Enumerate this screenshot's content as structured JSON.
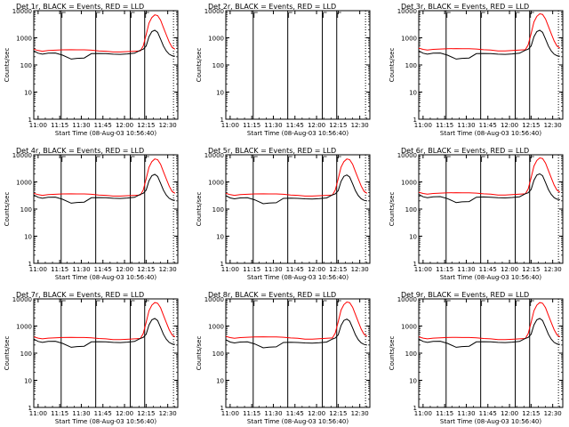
{
  "figure": {
    "rows": 3,
    "cols": 3
  },
  "common": {
    "ylabel": "Counts/sec",
    "xlabel": "Start Time (08-Aug-03 10:56:40)",
    "title_suffix": "BLACK = Events, RED = LLD",
    "x_ticks": [
      "11:00",
      "11:15",
      "11:30",
      "11:45",
      "12:00",
      "12:15",
      "12:30"
    ],
    "y_ticks": [
      "1",
      "10",
      "100",
      "1000",
      "10000"
    ],
    "colors": {
      "events": "#000000",
      "lld": "#ff0000",
      "axis": "#000000"
    }
  },
  "chart_data": [
    {
      "type": "line",
      "title": "Det 1r",
      "has_data": true,
      "events_scale": 1.0,
      "lld_scale": 1.0
    },
    {
      "type": "line",
      "title": "Det 2r",
      "has_data": false
    },
    {
      "type": "line",
      "title": "Det 3r",
      "has_data": true,
      "events_scale": 1.0,
      "lld_scale": 1.1
    },
    {
      "type": "line",
      "title": "Det 4r",
      "has_data": true,
      "events_scale": 1.0,
      "lld_scale": 1.0
    },
    {
      "type": "line",
      "title": "Det 5r",
      "has_data": true,
      "events_scale": 0.95,
      "lld_scale": 1.0
    },
    {
      "type": "line",
      "title": "Det 6r",
      "has_data": true,
      "events_scale": 1.05,
      "lld_scale": 1.1
    },
    {
      "type": "line",
      "title": "Det 7r",
      "has_data": true,
      "events_scale": 1.0,
      "lld_scale": 1.05
    },
    {
      "type": "line",
      "title": "Det 8r",
      "has_data": true,
      "events_scale": 0.95,
      "lld_scale": 1.1
    },
    {
      "type": "line",
      "title": "Det 9r",
      "has_data": true,
      "events_scale": 1.0,
      "lld_scale": 1.05
    }
  ],
  "series_profile": {
    "x_minutes": [
      0,
      3,
      6,
      10,
      15,
      20,
      26,
      30,
      35,
      40,
      45,
      50,
      55,
      60,
      65,
      70,
      74,
      76,
      78,
      80,
      82,
      84,
      86,
      88,
      90,
      92,
      94,
      96,
      98
    ],
    "events": [
      330,
      270,
      250,
      270,
      275,
      230,
      165,
      175,
      180,
      260,
      265,
      260,
      250,
      245,
      255,
      270,
      350,
      380,
      500,
      1100,
      1700,
      1900,
      1600,
      900,
      500,
      330,
      250,
      220,
      210
    ],
    "lld": [
      380,
      340,
      320,
      340,
      350,
      360,
      365,
      360,
      360,
      350,
      330,
      320,
      300,
      300,
      310,
      320,
      330,
      500,
      1300,
      3500,
      5600,
      7000,
      6600,
      4500,
      2400,
      1300,
      700,
      450,
      380
    ],
    "x_range": [
      0,
      100
    ],
    "y_range": [
      1,
      10000
    ],
    "vertical_markers_minutes": [
      19,
      43,
      67,
      77
    ],
    "dotted_markers_minutes": [
      97
    ],
    "small_flag_markers_minutes": [
      19,
      43,
      67,
      77
    ]
  }
}
